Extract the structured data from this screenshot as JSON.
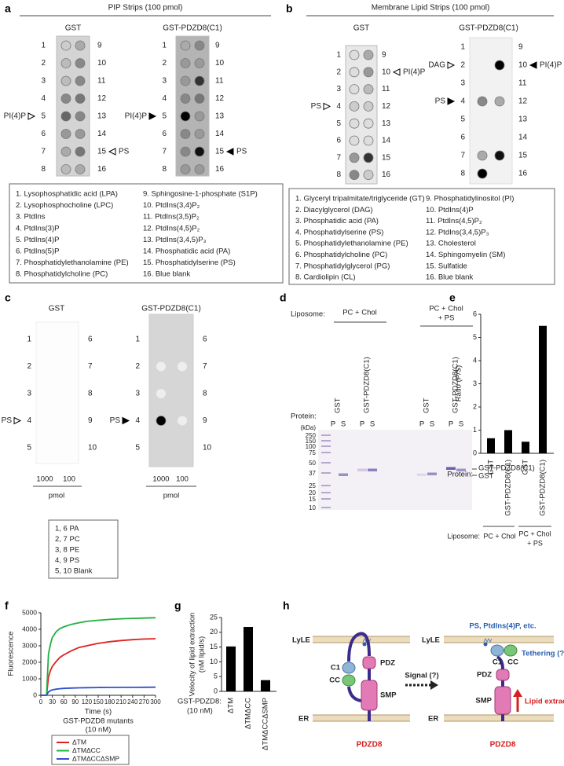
{
  "panels": {
    "a": {
      "label": "a",
      "title": "PIP Strips (100 pmol)",
      "strips": [
        {
          "name": "GST",
          "left": [
            1,
            2,
            3,
            4,
            5,
            6,
            7,
            8
          ],
          "right": [
            9,
            10,
            11,
            12,
            13,
            14,
            15,
            16
          ],
          "annotations": [
            "PI(4)P",
            "PS"
          ]
        },
        {
          "name": "GST-PDZD8(C1)",
          "left": [
            1,
            2,
            3,
            4,
            5,
            6,
            7,
            8
          ],
          "right": [
            9,
            10,
            11,
            12,
            13,
            14,
            15,
            16
          ],
          "annotations": [
            "PI(4)P",
            "PS"
          ]
        }
      ],
      "legend": [
        "1. Lysophosphatidic acid (LPA)",
        "2. Lysophosphocholine (LPC)",
        "3. PtdIns",
        "4. PtdIns(3)P",
        "5. PtdIns(4)P",
        "6. PtdIns(5)P",
        "7. Phosphatidylethanolamine (PE)",
        "8. Phosphatidylcholine (PC)",
        "9. Sphingosine-1-phosphate (S1P)",
        "10. PtdIns(3,4)P₂",
        "11. PtdIns(3,5)P₂",
        "12. PtdIns(4,5)P₂",
        "13. PtdIns(3,4,5)P₃",
        "14. Phosphatidic acid (PA)",
        "15. Phosphatidylserine (PS)",
        "16. Blue blank"
      ]
    },
    "b": {
      "label": "b",
      "title": "Membrane Lipid Strips (100 pmol)",
      "strips": [
        {
          "name": "GST",
          "left": [
            1,
            2,
            3,
            4,
            5,
            6,
            7,
            8
          ],
          "right": [
            9,
            10,
            11,
            12,
            13,
            14,
            15,
            16
          ],
          "annotations": [
            "PI(4)P",
            "PS"
          ]
        },
        {
          "name": "GST-PDZD8(C1)",
          "left": [
            1,
            2,
            3,
            4,
            5,
            6,
            7,
            8
          ],
          "right": [
            9,
            10,
            11,
            12,
            13,
            14,
            15,
            16
          ],
          "annotations": [
            "DAG",
            "PI(4)P",
            "PS"
          ]
        }
      ],
      "legend": [
        "1. Glyceryl tripalmitate/triglyceride (GT)",
        "2. Diacylglycerol (DAG)",
        "3. Phosphatidic acid (PA)",
        "4. Phosphatidylserine (PS)",
        "5. Phosphatidylethanolamine (PE)",
        "6. Phosphatidylcholine (PC)",
        "7. Phosphatidylglycerol (PG)",
        "8. Cardiolipin (CL)",
        "9. Phosphatidylinositol (PI)",
        "10. PtdIns(4)P",
        "11. PtdIns(4,5)P₂",
        "12. PtdIns(3,4,5)P₃",
        "13. Cholesterol",
        "14. Sphingomyelin (SM)",
        "15. Sulfatide",
        "16. Blue blank"
      ]
    },
    "c": {
      "label": "c",
      "strips": [
        {
          "name": "GST",
          "left": [
            1,
            2,
            3,
            4,
            5
          ],
          "right": [
            6,
            7,
            8,
            9,
            10
          ],
          "annotations": [
            "PS"
          ],
          "columns": [
            "1000",
            "100"
          ],
          "unit": "pmol"
        },
        {
          "name": "GST-PDZD8(C1)",
          "left": [
            1,
            2,
            3,
            4,
            5
          ],
          "right": [
            6,
            7,
            8,
            9,
            10
          ],
          "annotations": [
            "PS"
          ],
          "columns": [
            "1000",
            "100"
          ],
          "unit": "pmol"
        }
      ],
      "legend": [
        "1, 6 PA",
        "2, 7 PC",
        "3, 8 PE",
        "4, 9 PS",
        "5, 10 Blank"
      ]
    },
    "d": {
      "label": "d",
      "liposome_label": "Liposome:",
      "liposomes": [
        [
          "PC + Chol"
        ],
        [
          "PC + Chol",
          "+ PS"
        ]
      ],
      "protein_label": "Protein:",
      "lanes": [
        "GST",
        "GST-PDZD8(C1)",
        "GST",
        "GST-PDZD8(C1)"
      ],
      "fractions": [
        "P",
        "S",
        "P",
        "S",
        "P",
        "S",
        "P",
        "S"
      ],
      "marker_unit": "(kDa)",
      "markers": [
        250,
        150,
        100,
        75,
        50,
        37,
        25,
        20,
        15,
        10
      ],
      "bands": [
        "GST-PDZD8(C1)",
        "GST"
      ]
    },
    "h": {
      "label": "h",
      "left": {
        "membrane_top": "LyLE",
        "membrane_bottom": "ER",
        "domains": [
          "C1",
          "CC",
          "PDZ",
          "SMP"
        ],
        "protein": "PDZD8"
      },
      "arrow": "Signal (?)",
      "right": {
        "membrane_top": "LyLE",
        "membrane_bottom": "ER",
        "domains": [
          "C1",
          "CC",
          "PDZ",
          "SMP"
        ],
        "protein": "PDZD8",
        "lipids": "PS, PtdIns(4)P, etc.",
        "tethering": "Tethering (?)",
        "extraction": "Lipid extraction"
      }
    }
  },
  "chart_data": [
    {
      "type": "bar",
      "panel_label": "e",
      "y_label": "Ratio (P/S)",
      "categories": [
        "GST",
        "GST-PDZD8(C1)",
        "GST",
        "GST-PDZD8(C1)"
      ],
      "values": [
        0.65,
        1.0,
        0.5,
        5.5
      ],
      "color": "#000000",
      "ylim": [
        0,
        6
      ],
      "yticks": [
        0,
        1,
        2,
        3,
        4,
        5,
        6
      ],
      "protein_label": "Protein:",
      "liposome_label": "Liposome:",
      "groups": [
        [
          "PC + Chol"
        ],
        [
          "PC + Chol",
          "+ PS"
        ]
      ]
    },
    {
      "type": "line",
      "panel_label": "f",
      "y_label": "Fluorescence",
      "x_label": "Time (s)",
      "subtitle": [
        "GST-PDZD8 mutants",
        "(10 nM)"
      ],
      "x": [
        0,
        10,
        15,
        20,
        25,
        30,
        40,
        50,
        60,
        80,
        100,
        120,
        150,
        180,
        210,
        240,
        270,
        300
      ],
      "series": [
        {
          "name": "ΔTM",
          "color": "#e02020",
          "values": [
            0,
            0,
            10,
            1100,
            1500,
            1750,
            2050,
            2300,
            2450,
            2700,
            2900,
            3000,
            3150,
            3250,
            3320,
            3370,
            3410,
            3430
          ]
        },
        {
          "name": "ΔTMΔCC",
          "color": "#20b040",
          "values": [
            0,
            0,
            10,
            2500,
            3100,
            3500,
            3850,
            4050,
            4150,
            4300,
            4400,
            4480,
            4550,
            4600,
            4640,
            4660,
            4680,
            4700
          ]
        },
        {
          "name": "ΔTMΔCCΔSMP",
          "color": "#3050d0",
          "values": [
            0,
            0,
            5,
            200,
            280,
            330,
            370,
            400,
            420,
            440,
            450,
            460,
            470,
            475,
            480,
            480,
            485,
            490
          ]
        }
      ],
      "xlim": [
        0,
        300
      ],
      "xticks": [
        0,
        30,
        60,
        90,
        120,
        150,
        180,
        210,
        240,
        270,
        300
      ],
      "ylim": [
        0,
        5000
      ],
      "yticks": [
        0,
        1000,
        2000,
        3000,
        4000,
        5000
      ]
    },
    {
      "type": "bar",
      "panel_label": "g",
      "y_label": [
        "Velocity of lipid extraction",
        "(nM lipid/s)"
      ],
      "categories": [
        "ΔTM",
        "ΔTMΔCC",
        "ΔTMΔCCΔSMP"
      ],
      "values": [
        15.2,
        21.8,
        3.8
      ],
      "color": "#000000",
      "ylim": [
        0,
        25
      ],
      "yticks": [
        0,
        5,
        10,
        15,
        20,
        25
      ],
      "note": [
        "GST-PDZD8:",
        "(10 nM)"
      ]
    }
  ]
}
